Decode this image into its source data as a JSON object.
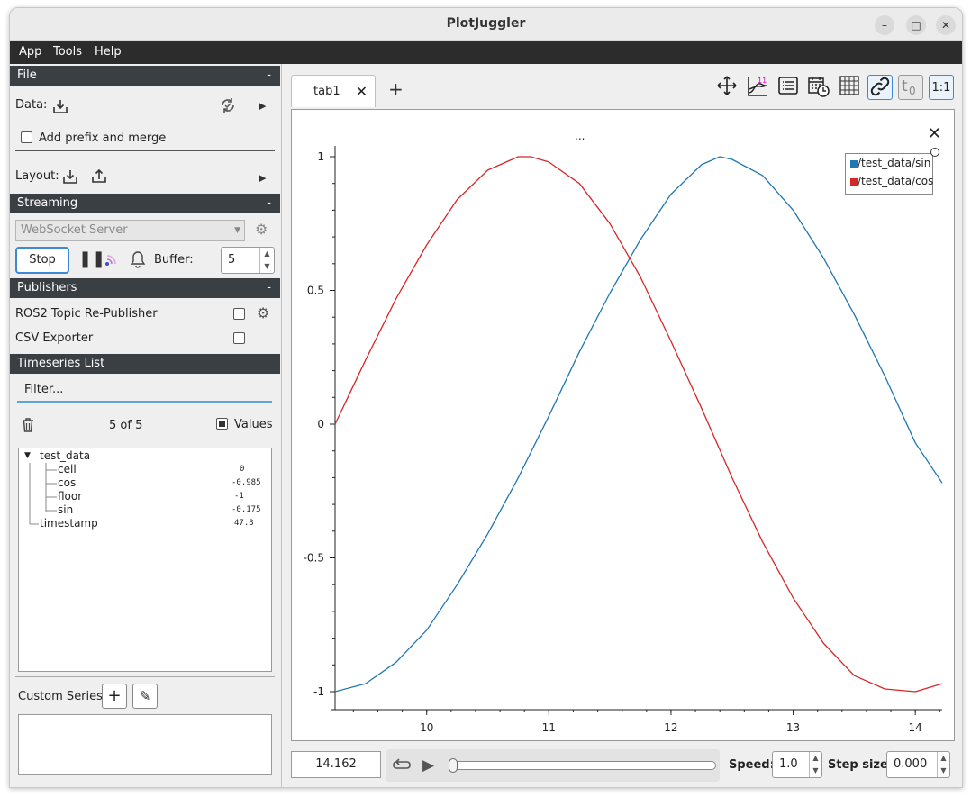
{
  "window": {
    "title": "PlotJuggler",
    "minimize": "–",
    "maximize": "□",
    "close": "✕"
  },
  "menu": [
    "App",
    "Tools",
    "Help"
  ],
  "file_section": {
    "header": "File",
    "collapse": "-",
    "data_label": "Data:",
    "add_prefix_label": "Add prefix and merge",
    "add_prefix_checked": false,
    "layout_label": "Layout:"
  },
  "streaming": {
    "header": "Streaming",
    "collapse": "-",
    "source": "WebSocket Server",
    "stop_label": "Stop",
    "buffer_label": "Buffer:",
    "buffer_value": "5"
  },
  "publishers": {
    "header": "Publishers",
    "collapse": "-",
    "items": [
      {
        "label": "ROS2 Topic Re-Publisher",
        "checked": false,
        "has_settings": true
      },
      {
        "label": "CSV Exporter",
        "checked": false,
        "has_settings": false
      }
    ]
  },
  "timeseries": {
    "header": "Timeseries List",
    "filter_placeholder": "Filter...",
    "count": "5 of 5",
    "values_label": "Values",
    "values_checked": true,
    "tree": {
      "root": "test_data",
      "children": [
        {
          "name": "ceil",
          "value": "0"
        },
        {
          "name": "cos",
          "value": "-0.985"
        },
        {
          "name": "floor",
          "value": "-1"
        },
        {
          "name": "sin",
          "value": "-0.175"
        }
      ],
      "timestamp": {
        "name": "timestamp",
        "value": "47.3"
      }
    }
  },
  "custom_series": {
    "label": "Custom Series:",
    "add": "+",
    "edit": "✎"
  },
  "tabs": [
    {
      "label": "tab1",
      "close": "✕"
    }
  ],
  "add_tab": "+",
  "toolbar": {
    "ratio_label": "1:1"
  },
  "plot": {
    "title": "...",
    "close": "✕",
    "legend": [
      {
        "name": "/test_data/sin",
        "color": "#1f77b4"
      },
      {
        "name": "/test_data/cos",
        "color": "#d62728"
      }
    ]
  },
  "chart_data": {
    "type": "line",
    "title": "...",
    "xlim": [
      9.25,
      14.22
    ],
    "ylim": [
      -1.0,
      1.0
    ],
    "x_ticks": [
      "10",
      "11",
      "12",
      "13",
      "14"
    ],
    "y_ticks": [
      "1",
      "0.5",
      "0",
      "-0.5",
      "-1"
    ],
    "series": [
      {
        "name": "/test_data/sin",
        "color": "#1f77b4",
        "x": [
          9.25,
          9.5,
          9.75,
          10.0,
          10.25,
          10.5,
          10.75,
          11.0,
          11.25,
          11.5,
          11.75,
          12.0,
          12.25,
          12.4,
          12.5,
          12.75,
          13.0,
          13.25,
          13.5,
          13.75,
          14.0,
          14.22
        ],
        "y": [
          -1.0,
          -0.97,
          -0.89,
          -0.77,
          -0.6,
          -0.41,
          -0.2,
          0.03,
          0.27,
          0.49,
          0.69,
          0.86,
          0.97,
          1.0,
          0.99,
          0.93,
          0.8,
          0.62,
          0.41,
          0.18,
          -0.07,
          -0.22
        ]
      },
      {
        "name": "/test_data/cos",
        "color": "#d62728",
        "x": [
          9.25,
          9.5,
          9.75,
          10.0,
          10.25,
          10.5,
          10.75,
          10.85,
          11.0,
          11.25,
          11.5,
          11.75,
          12.0,
          12.25,
          12.5,
          12.75,
          13.0,
          13.25,
          13.5,
          13.75,
          14.0,
          14.22
        ],
        "y": [
          0.0,
          0.24,
          0.47,
          0.67,
          0.84,
          0.95,
          1.0,
          1.0,
          0.98,
          0.9,
          0.75,
          0.55,
          0.31,
          0.06,
          -0.2,
          -0.44,
          -0.65,
          -0.82,
          -0.94,
          -0.99,
          -1.0,
          -0.97
        ]
      }
    ]
  },
  "bottom": {
    "time": "14.162",
    "speed_label": "Speed:",
    "speed_value": "1.0",
    "step_label": "Step size:",
    "step_value": "0.000"
  },
  "colors": {
    "accent": "#3c8ad6",
    "section_header": "#3a3f44",
    "menubar": "#2c2c2c"
  }
}
